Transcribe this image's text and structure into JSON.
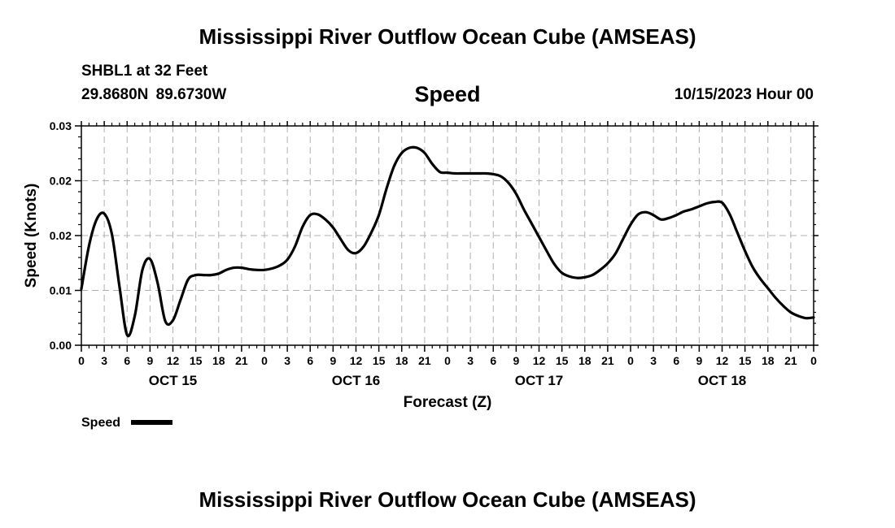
{
  "header": {
    "title": "Mississippi River Outflow Ocean Cube (AMSEAS)",
    "station": "SHBL1 at 32 Feet",
    "coords": "29.8680N  89.6730W",
    "variable": "Speed",
    "date": "10/15/2023 Hour 00"
  },
  "footer": {
    "title": "Mississippi River Outflow Ocean Cube (AMSEAS)"
  },
  "chart_data": {
    "type": "line",
    "title": "Speed",
    "xlabel": "Forecast (Z)",
    "ylabel": "Speed (Knots)",
    "xlim": [
      0,
      96
    ],
    "ylim": [
      0,
      0.03
    ],
    "grid": true,
    "legend": "bottom-left",
    "x_unit": "hours since 10/15/2023 00Z",
    "x_tick_labels": [
      "0",
      "3",
      "6",
      "9",
      "12",
      "15",
      "18",
      "21",
      "0",
      "3",
      "6",
      "9",
      "12",
      "15",
      "18",
      "21",
      "0",
      "3",
      "6",
      "9",
      "12",
      "15",
      "18",
      "21",
      "0",
      "3",
      "6",
      "9",
      "12",
      "15",
      "18",
      "21",
      "0"
    ],
    "y_tick_labels": [
      "0.00",
      "0.01",
      "0.02",
      "0.02",
      "0.03"
    ],
    "day_labels": [
      "OCT 15",
      "OCT 16",
      "OCT 17",
      "OCT 18"
    ],
    "series": [
      {
        "name": "Speed",
        "color": "#000000",
        "x": [
          0,
          1,
          2,
          3,
          4,
          5,
          6,
          7,
          8,
          9,
          10,
          11,
          12,
          13,
          14,
          15,
          16,
          17,
          18,
          19,
          20,
          21,
          22,
          23,
          24,
          25,
          26,
          27,
          28,
          29,
          30,
          31,
          32,
          33,
          34,
          35,
          36,
          37,
          38,
          39,
          40,
          41,
          42,
          43,
          44,
          45,
          46,
          47,
          48,
          49,
          50,
          51,
          52,
          53,
          54,
          55,
          56,
          57,
          58,
          59,
          60,
          61,
          62,
          63,
          64,
          65,
          66,
          67,
          68,
          69,
          70,
          71,
          72,
          73,
          74,
          75,
          76,
          77,
          78,
          79,
          80,
          81,
          82,
          83,
          84,
          85,
          86,
          87,
          88,
          89,
          90,
          91,
          92,
          93,
          94,
          95,
          96
        ],
        "y": [
          0.0077,
          0.0136,
          0.0172,
          0.018,
          0.0152,
          0.008,
          0.0014,
          0.004,
          0.0103,
          0.0118,
          0.0085,
          0.0033,
          0.0034,
          0.0062,
          0.009,
          0.0096,
          0.0096,
          0.0096,
          0.0098,
          0.0103,
          0.0106,
          0.0106,
          0.0104,
          0.0103,
          0.0103,
          0.0105,
          0.0109,
          0.0117,
          0.0135,
          0.0162,
          0.0178,
          0.0179,
          0.0172,
          0.0161,
          0.0145,
          0.013,
          0.0126,
          0.0135,
          0.0154,
          0.0178,
          0.0214,
          0.0245,
          0.0263,
          0.027,
          0.027,
          0.0263,
          0.0248,
          0.0237,
          0.0236,
          0.0235,
          0.0235,
          0.0235,
          0.0235,
          0.0235,
          0.0234,
          0.0231,
          0.0222,
          0.0207,
          0.0186,
          0.0167,
          0.0148,
          0.0129,
          0.0111,
          0.0099,
          0.0094,
          0.0092,
          0.0093,
          0.0096,
          0.0103,
          0.0112,
          0.0125,
          0.0145,
          0.0165,
          0.0179,
          0.0182,
          0.0178,
          0.0172,
          0.0174,
          0.0178,
          0.0183,
          0.0186,
          0.019,
          0.0194,
          0.0196,
          0.0195,
          0.0179,
          0.0154,
          0.0129,
          0.0107,
          0.0091,
          0.0078,
          0.0065,
          0.0054,
          0.0045,
          0.004,
          0.0037,
          0.0038
        ]
      }
    ]
  }
}
